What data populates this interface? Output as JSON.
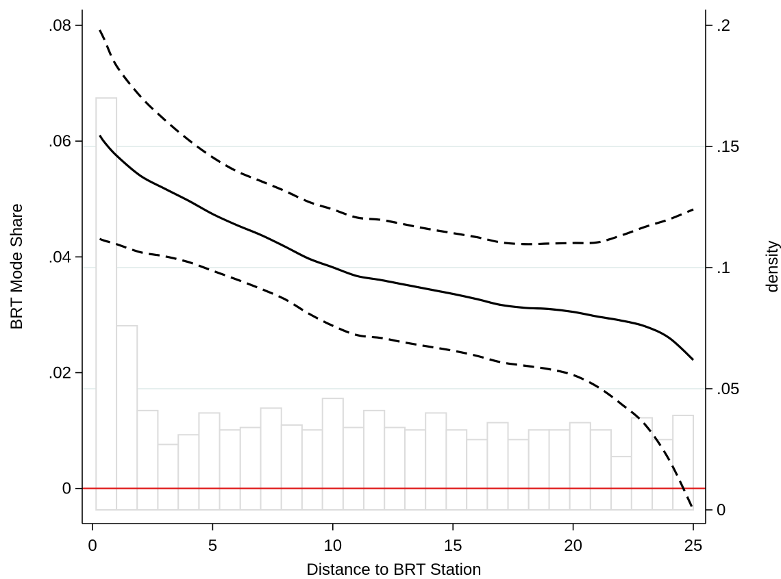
{
  "chart_data": {
    "type": "line",
    "title": "",
    "xlabel": "Distance to BRT Station",
    "ylabel": "BRT Mode Share",
    "y2label": "density",
    "xlim": [
      0,
      25
    ],
    "ylim": [
      -0.0037,
      0.08
    ],
    "y2lim": [
      0,
      0.2
    ],
    "xticks": [
      0,
      5,
      10,
      15,
      20,
      25
    ],
    "xtick_labels": [
      "0",
      "5",
      "10",
      "15",
      "20",
      "25"
    ],
    "yticks": [
      0,
      0.02,
      0.04,
      0.06,
      0.08
    ],
    "ytick_labels": [
      "0",
      ".02",
      ".04",
      ".06",
      ".08"
    ],
    "y2ticks": [
      0,
      0.05,
      0.1,
      0.15,
      0.2
    ],
    "y2tick_labels": [
      "0",
      ".05",
      ".1",
      ".15",
      ".2"
    ],
    "grid": true,
    "reference_line": {
      "y": 0,
      "color": "#e02020"
    },
    "histogram": {
      "axis": "y2",
      "bin_edges": [
        0.15,
        1.0,
        1.86,
        2.72,
        3.57,
        4.43,
        5.29,
        6.15,
        7.0,
        7.86,
        8.72,
        9.57,
        10.43,
        11.29,
        12.15,
        13.0,
        13.86,
        14.72,
        15.57,
        16.43,
        17.29,
        18.15,
        19.0,
        19.86,
        20.72,
        21.58,
        22.43,
        23.29,
        24.15,
        25.0
      ],
      "density": [
        0.17,
        0.076,
        0.041,
        0.027,
        0.031,
        0.04,
        0.033,
        0.034,
        0.042,
        0.035,
        0.033,
        0.046,
        0.034,
        0.041,
        0.034,
        0.033,
        0.04,
        0.033,
        0.029,
        0.036,
        0.029,
        0.033,
        0.033,
        0.036,
        0.033,
        0.022,
        0.038,
        0.029,
        0.039
      ],
      "color": "#dcdcdc"
    },
    "series": [
      {
        "style": "solid",
        "color": "#000000",
        "x": [
          0.3,
          0.5,
          1,
          2,
          3,
          4,
          5,
          6,
          7,
          8,
          9,
          10,
          11,
          12,
          13,
          14,
          15,
          16,
          17,
          18,
          19,
          20,
          21,
          22,
          23,
          24,
          25
        ],
        "y": [
          0.061,
          0.0598,
          0.0575,
          0.054,
          0.0518,
          0.0497,
          0.0474,
          0.0455,
          0.0438,
          0.0418,
          0.0397,
          0.0382,
          0.0367,
          0.036,
          0.0352,
          0.0344,
          0.0336,
          0.0327,
          0.0317,
          0.0312,
          0.031,
          0.0305,
          0.0297,
          0.029,
          0.028,
          0.026,
          0.0222
        ]
      },
      {
        "style": "dashed",
        "color": "#000000",
        "x": [
          0.3,
          0.5,
          1,
          2,
          3,
          4,
          5,
          6,
          7,
          8,
          9,
          10,
          11,
          12,
          13,
          14,
          15,
          16,
          17,
          18,
          19,
          20,
          21,
          22,
          23,
          24,
          25
        ],
        "y": [
          0.0792,
          0.0775,
          0.073,
          0.0677,
          0.0637,
          0.0602,
          0.0572,
          0.0548,
          0.0531,
          0.0514,
          0.0495,
          0.0482,
          0.0468,
          0.0464,
          0.0456,
          0.0448,
          0.0441,
          0.0434,
          0.0425,
          0.0422,
          0.0423,
          0.0424,
          0.0425,
          0.0437,
          0.0452,
          0.0465,
          0.0482
        ]
      },
      {
        "style": "dashed",
        "color": "#000000",
        "x": [
          0.3,
          0.5,
          1,
          2,
          3,
          4,
          5,
          6,
          7,
          8,
          9,
          10,
          11,
          12,
          13,
          14,
          15,
          16,
          17,
          18,
          19,
          20,
          21,
          22,
          23,
          24,
          25
        ],
        "y": [
          0.0431,
          0.0428,
          0.0422,
          0.0408,
          0.0401,
          0.0391,
          0.0376,
          0.0361,
          0.0345,
          0.0327,
          0.0302,
          0.0281,
          0.0265,
          0.026,
          0.0252,
          0.0245,
          0.0238,
          0.0229,
          0.0218,
          0.0212,
          0.0206,
          0.0196,
          0.0176,
          0.0146,
          0.011,
          0.0049,
          -0.0037
        ]
      }
    ]
  }
}
